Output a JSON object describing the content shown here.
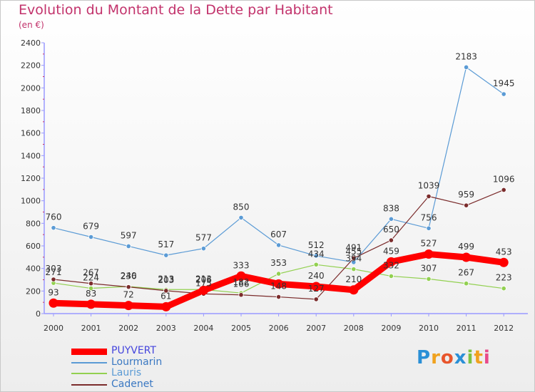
{
  "title": "Evolution du Montant de la Dette par Habitant",
  "subtitle": "(en €)",
  "brand": {
    "letters": [
      {
        "ch": "P",
        "color": "#2a8fd6"
      },
      {
        "ch": "r",
        "color": "#f0a21e"
      },
      {
        "ch": "o",
        "color": "#e8552c"
      },
      {
        "ch": "x",
        "color": "#2a8fd6"
      },
      {
        "ch": "i",
        "color": "#7cc242"
      },
      {
        "ch": "t",
        "color": "#f0a21e"
      },
      {
        "ch": "i",
        "color": "#e84a8a"
      }
    ]
  },
  "chart_data": {
    "type": "line",
    "x": [
      "2000",
      "2001",
      "2002",
      "2003",
      "2004",
      "2005",
      "2006",
      "2007",
      "2008",
      "2009",
      "2010",
      "2011",
      "2012"
    ],
    "ylim": [
      0,
      2400
    ],
    "yticks": [
      "0",
      "200",
      "400",
      "600",
      "800",
      "1000",
      "1200",
      "1400",
      "1600",
      "1800",
      "2000",
      "2200",
      "2400"
    ],
    "grid": false,
    "legend_position": "bottom-left",
    "series": [
      {
        "name": "PUYVERT",
        "color": "#ff0000",
        "width": 9,
        "values": [
          93,
          83,
          72,
          61,
          206,
          333,
          263,
          240,
          210,
          459,
          527,
          499,
          453
        ],
        "labels": [
          "93",
          "83",
          "72",
          "61",
          "206",
          "333",
          "",
          "240",
          "210",
          "459",
          "527",
          "499",
          "453"
        ]
      },
      {
        "name": "Lourmarin",
        "color": "#5b9bd5",
        "width": 1.2,
        "values": [
          760,
          679,
          597,
          517,
          577,
          850,
          607,
          512,
          455,
          838,
          756,
          2183,
          1945
        ],
        "labels": [
          "760",
          "679",
          "597",
          "517",
          "577",
          "850",
          "607",
          "512",
          "455",
          "838",
          "756",
          "2183",
          "1945"
        ]
      },
      {
        "name": "Lauris",
        "color": "#92d050",
        "width": 1.2,
        "values": [
          271,
          224,
          240,
          213,
          213,
          182,
          353,
          434,
          394,
          332,
          307,
          267,
          223
        ],
        "labels": [
          "271",
          "224",
          "240",
          "213",
          "213",
          "182",
          "353",
          "434",
          "394",
          "332",
          "307",
          "267",
          "223"
        ]
      },
      {
        "name": "Cadenet",
        "color": "#7b2c2c",
        "width": 1.2,
        "values": [
          303,
          267,
          236,
          203,
          175,
          166,
          148,
          127,
          491,
          650,
          1039,
          959,
          1096
        ],
        "labels": [
          "303",
          "267",
          "236",
          "203",
          "175",
          "166",
          "148",
          "127",
          "491",
          "650",
          "1039",
          "959",
          "1096"
        ]
      }
    ]
  }
}
